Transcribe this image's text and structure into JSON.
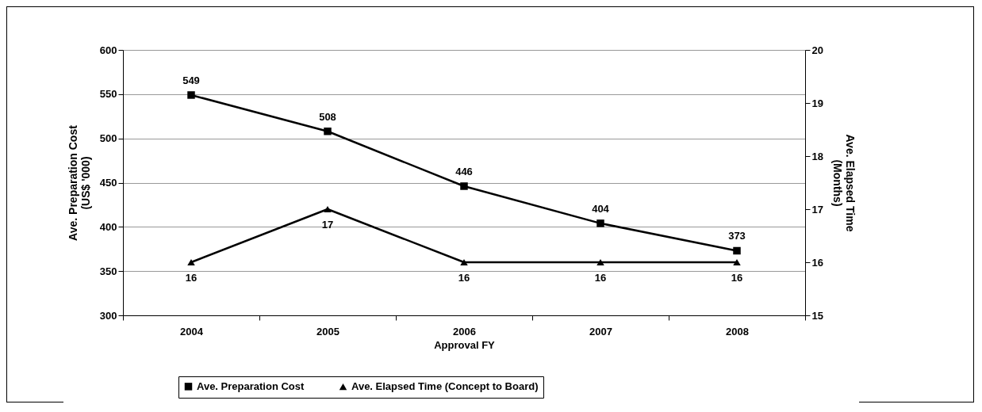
{
  "chart_data": {
    "type": "line",
    "xlabel": "Approval FY",
    "ylabel": "Ave. Preparation Cost\n(US$ '000)",
    "y2label": "Ave. Elapsed Time\n(Months)",
    "categories": [
      "2004",
      "2005",
      "2006",
      "2007",
      "2008"
    ],
    "series": [
      {
        "name": "Ave. Preparation Cost",
        "color": "#000000",
        "marker": "square",
        "values": [
          549,
          508,
          446,
          404,
          373
        ]
      },
      {
        "name": "Ave. Elapsed Time (Concept to Board)",
        "color": "#000000",
        "marker": "triangle",
        "axis": "y2",
        "values": [
          16,
          17,
          16,
          16,
          16
        ]
      }
    ],
    "ylim": [
      300,
      600
    ],
    "yticks": [
      300,
      350,
      400,
      450,
      500,
      550,
      600
    ],
    "y2lim": [
      15,
      20
    ],
    "y2ticks": [
      15,
      16,
      17,
      18,
      19,
      20
    ],
    "grid": "y",
    "legend": "bottom",
    "data_labels": true,
    "line_style": "solid"
  }
}
